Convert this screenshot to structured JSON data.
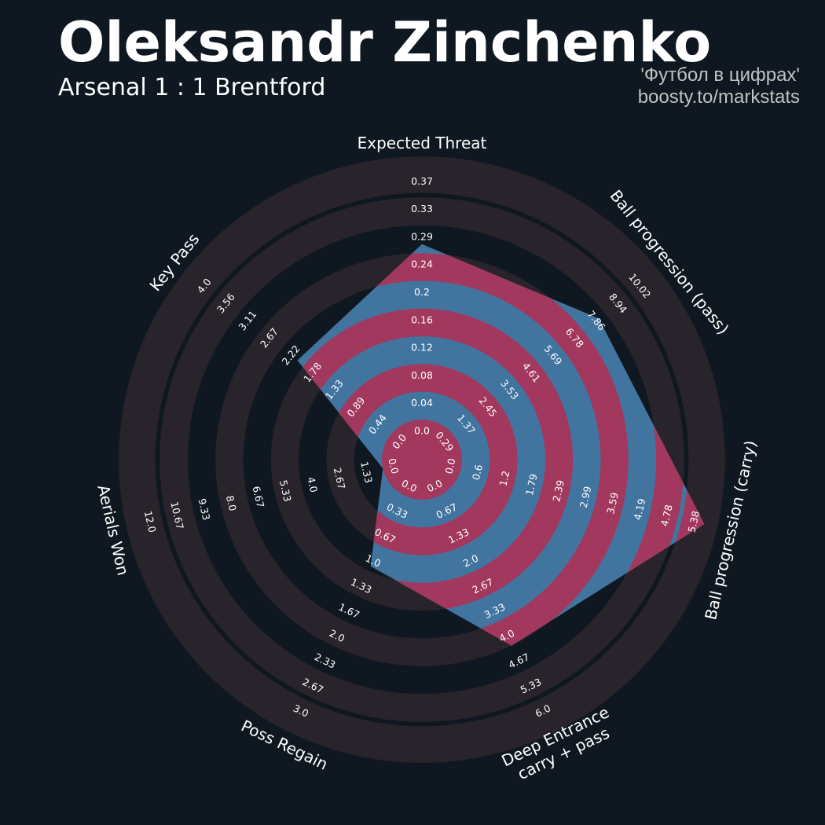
{
  "header": {
    "title": "Oleksandr Zinchenko",
    "subtitle": "Arsenal 1 : 1 Brentford",
    "credit_line1": "'Футбол в цифрах'",
    "credit_line2": "boosty.to/markstats"
  },
  "colors": {
    "background": "#0f1820",
    "ring_band": "#29232b",
    "player_fill": "#4274a0",
    "player_band": "#a2385e",
    "text": "#ffffff",
    "credit": "#c2c2c2"
  },
  "chart_data": {
    "type": "radar",
    "title": "Oleksandr Zinchenko",
    "subtitle": "Arsenal 1 : 1 Brentford",
    "params": [
      {
        "label": "Expected Threat",
        "value": 0.26,
        "ticks": [
          "0.0",
          "0.04",
          "0.08",
          "0.12",
          "0.16",
          "0.2",
          "0.24",
          "0.29",
          "0.33",
          "0.37"
        ]
      },
      {
        "label": "Ball progression (pass)",
        "value": 7.55,
        "ticks": [
          "0.29",
          "1.37",
          "2.45",
          "3.53",
          "4.61",
          "5.69",
          "6.78",
          "7.86",
          "8.94",
          "10.02"
        ]
      },
      {
        "label": "Ball progression (carry)",
        "value": 5.38,
        "ticks": [
          "0.0",
          "0.6",
          "1.2",
          "1.79",
          "2.39",
          "2.99",
          "3.59",
          "4.19",
          "4.78",
          "5.38"
        ]
      },
      {
        "label": "Deep Entrance\ncarry + pass",
        "value": 4.0,
        "ticks": [
          "0.0",
          "0.67",
          "1.33",
          "2.0",
          "2.67",
          "3.33",
          "4.0",
          "4.67",
          "5.33",
          "6.0"
        ]
      },
      {
        "label": "Poss Regain",
        "value": 0.94,
        "ticks": [
          "0.0",
          "0.33",
          "0.67",
          "1.0",
          "1.33",
          "1.67",
          "2.0",
          "2.33",
          "2.67",
          "3.0"
        ]
      },
      {
        "label": "Aerials Won",
        "value": 0.0,
        "ticks": [
          "0.0",
          "1.33",
          "2.67",
          "4.0",
          "5.33",
          "6.67",
          "8.0",
          "9.33",
          "10.67",
          "12.0"
        ]
      },
      {
        "label": "Key Pass",
        "value": 1.91,
        "ticks": [
          "0.0",
          "0.44",
          "0.89",
          "1.33",
          "1.78",
          "2.22",
          "2.67",
          "3.11",
          "3.56",
          "4.0"
        ]
      }
    ]
  }
}
